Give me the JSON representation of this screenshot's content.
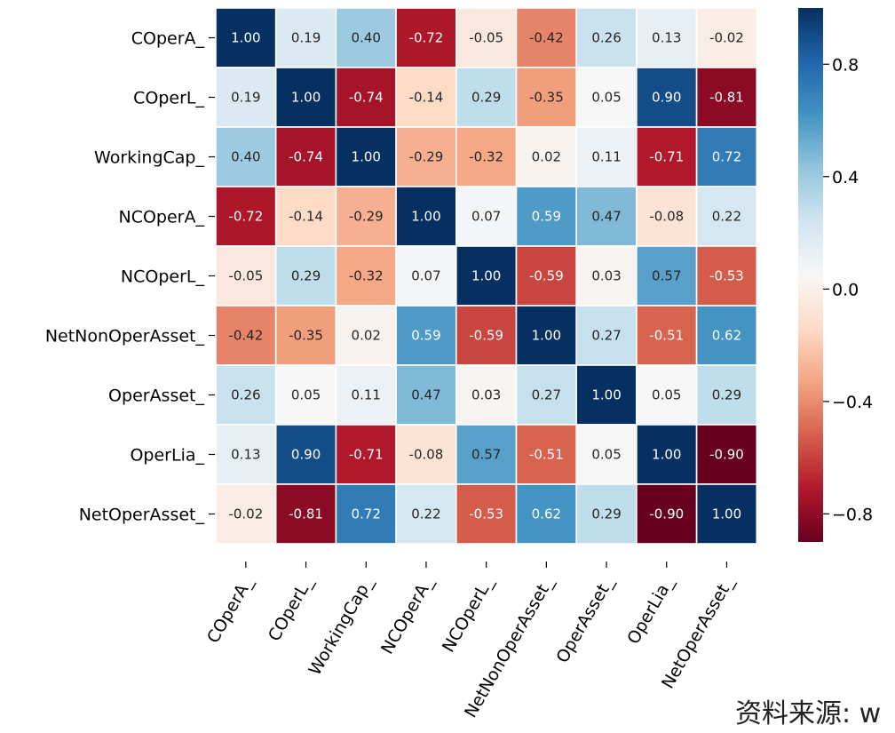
{
  "chart_data": {
    "type": "heatmap",
    "title": "",
    "labels": [
      "COperA_",
      "COperL_",
      "WorkingCap_",
      "NCOperA_",
      "NCOperL_",
      "NetNonOperAsset_",
      "OperAsset_",
      "OperLia_",
      "NetOperAsset_"
    ],
    "matrix": [
      [
        1.0,
        0.19,
        0.4,
        -0.72,
        -0.05,
        -0.42,
        0.26,
        0.13,
        -0.02
      ],
      [
        0.19,
        1.0,
        -0.74,
        -0.14,
        0.29,
        -0.35,
        0.05,
        0.9,
        -0.81
      ],
      [
        0.4,
        -0.74,
        1.0,
        -0.29,
        -0.32,
        0.02,
        0.11,
        -0.71,
        0.72
      ],
      [
        -0.72,
        -0.14,
        -0.29,
        1.0,
        0.07,
        0.59,
        0.47,
        -0.08,
        0.22
      ],
      [
        -0.05,
        0.29,
        -0.32,
        0.07,
        1.0,
        -0.59,
        0.03,
        0.57,
        -0.53
      ],
      [
        -0.42,
        -0.35,
        0.02,
        0.59,
        -0.59,
        1.0,
        0.27,
        -0.51,
        0.62
      ],
      [
        0.26,
        0.05,
        0.11,
        0.47,
        0.03,
        0.27,
        1.0,
        0.05,
        0.29
      ],
      [
        0.13,
        0.9,
        -0.71,
        -0.08,
        0.57,
        -0.51,
        0.05,
        1.0,
        -0.9
      ],
      [
        -0.02,
        -0.81,
        0.72,
        0.22,
        -0.53,
        0.62,
        0.29,
        -0.9,
        1.0
      ]
    ],
    "colormap": "RdBu",
    "vmin": -0.9,
    "vmax": 1.0,
    "colorbar_ticks": [
      0.8,
      0.4,
      0.0,
      -0.4,
      -0.8
    ],
    "colorbar_tick_labels": [
      "0.8",
      "0.4",
      "0.0",
      "−0.4",
      "−0.8"
    ],
    "x_tick_rotation_deg": 60
  },
  "source_note": "资料来源: w"
}
